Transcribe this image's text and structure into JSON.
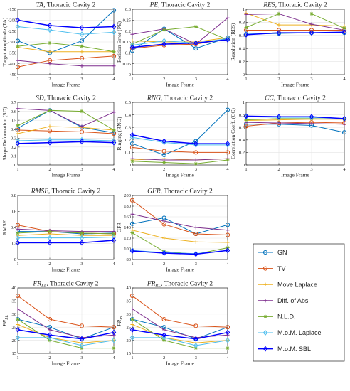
{
  "legend": {
    "entries": [
      {
        "name": "GN",
        "color": "#0072BD",
        "marker": "circle"
      },
      {
        "name": "TV",
        "color": "#D95319",
        "marker": "circle"
      },
      {
        "name": "Move Laplace",
        "color": "#EDB120",
        "marker": "plus"
      },
      {
        "name": "Diff. of Abs",
        "color": "#7E2F8E",
        "marker": "plus"
      },
      {
        "name": "N.L.D.",
        "color": "#77AC30",
        "marker": "star"
      },
      {
        "name": "M.o.M. Laplace",
        "color": "#4DBEEE",
        "marker": "diamond"
      },
      {
        "name": "M.o.M. SBL",
        "color": "#0000FF",
        "marker": "diamond"
      }
    ]
  },
  "chart_data": [
    {
      "id": "ta",
      "type": "line",
      "title": "TA, Thoracic Cavity 2",
      "title_italic_prefix": "TA",
      "title_rest": ", Thoracic Cavity 2",
      "ylabel": "Target Amplitude (TA)",
      "xlabel": "Image Frame",
      "x": [
        1,
        2,
        3,
        4
      ],
      "xlim": [
        1,
        4
      ],
      "ylim": [
        -450,
        -150
      ],
      "yticks": [
        -450,
        -400,
        -350,
        -300,
        -250,
        -200,
        -150
      ],
      "series": [
        {
          "name": "GN",
          "values": [
            -295,
            -350,
            -295,
            -155
          ]
        },
        {
          "name": "TV",
          "values": [
            -415,
            -385,
            -375,
            -365
          ]
        },
        {
          "name": "Move Laplace",
          "values": [
            -325,
            -345,
            -345,
            -345
          ]
        },
        {
          "name": "Diff. of Abs",
          "values": [
            -385,
            -400,
            -410,
            -410
          ]
        },
        {
          "name": "N.L.D.",
          "values": [
            -320,
            -305,
            -320,
            -345
          ]
        },
        {
          "name": "M.o.M. Laplace",
          "values": [
            -230,
            -245,
            -265,
            -255
          ]
        },
        {
          "name": "M.o.M. SBL",
          "values": [
            -200,
            -225,
            -235,
            -230
          ]
        }
      ]
    },
    {
      "id": "pe",
      "type": "line",
      "title": "PE, Thoracic Cavity 2",
      "title_italic_prefix": "PE",
      "title_rest": ", Thoracic Cavity 2",
      "ylabel": "Position Error (PE)",
      "xlabel": "Image Frame",
      "x": [
        1,
        2,
        3,
        4
      ],
      "xlim": [
        1,
        4
      ],
      "ylim": [
        0,
        0.3
      ],
      "yticks": [
        0,
        0.05,
        0.1,
        0.15,
        0.2,
        0.25,
        0.3
      ],
      "series": [
        {
          "name": "GN",
          "values": [
            0.11,
            0.21,
            0.12,
            0.17
          ]
        },
        {
          "name": "TV",
          "values": [
            0.12,
            0.135,
            0.14,
            0.165
          ]
        },
        {
          "name": "Move Laplace",
          "values": [
            0.155,
            0.15,
            0.15,
            0.17
          ]
        },
        {
          "name": "Diff. of Abs",
          "values": [
            0.185,
            0.21,
            0.14,
            0.26
          ]
        },
        {
          "name": "N.L.D.",
          "values": [
            0.14,
            0.205,
            0.22,
            0.16
          ]
        },
        {
          "name": "M.o.M. Laplace",
          "values": [
            0.135,
            0.155,
            0.145,
            0.165
          ]
        },
        {
          "name": "M.o.M. SBL",
          "values": [
            0.125,
            0.14,
            0.145,
            0.16
          ]
        }
      ]
    },
    {
      "id": "res",
      "type": "line",
      "title": "RES, Thoracic Cavity 2",
      "title_italic_prefix": "RES",
      "title_rest": ", Thoracic Cavity 2",
      "ylabel": "Resolution (RES)",
      "xlabel": "Image Frame",
      "x": [
        1,
        2,
        3,
        4
      ],
      "xlim": [
        1,
        4
      ],
      "ylim": [
        0,
        1
      ],
      "yticks": [
        0,
        0.2,
        0.4,
        0.6,
        0.8,
        1
      ],
      "series": [
        {
          "name": "GN",
          "values": [
            0.62,
            0.63,
            0.64,
            0.64
          ]
        },
        {
          "name": "TV",
          "values": [
            0.68,
            0.68,
            0.68,
            0.68
          ]
        },
        {
          "name": "Move Laplace",
          "values": [
            0.94,
            0.76,
            0.76,
            0.74
          ]
        },
        {
          "name": "Diff. of Abs",
          "values": [
            0.92,
            0.93,
            0.77,
            0.68
          ]
        },
        {
          "name": "N.L.D.",
          "values": [
            0.72,
            0.93,
            0.93,
            0.71
          ]
        },
        {
          "name": "M.o.M. Laplace",
          "values": [
            0.62,
            0.64,
            0.64,
            0.65
          ]
        },
        {
          "name": "M.o.M. SBL",
          "values": [
            0.61,
            0.64,
            0.64,
            0.65
          ]
        }
      ]
    },
    {
      "id": "sd",
      "type": "line",
      "title": "SD, Thoracic Cavity 2",
      "title_italic_prefix": "SD",
      "title_rest": ", Thoracic Cavity 2",
      "ylabel": "Shape Deformation (SD)",
      "xlabel": "Image Frame",
      "x": [
        1,
        2,
        3,
        4
      ],
      "xlim": [
        1,
        4
      ],
      "ylim": [
        0,
        0.7
      ],
      "yticks": [
        0,
        0.1,
        0.2,
        0.3,
        0.4,
        0.5,
        0.6,
        0.7
      ],
      "series": [
        {
          "name": "GN",
          "values": [
            0.41,
            0.61,
            0.42,
            0.36
          ]
        },
        {
          "name": "TV",
          "values": [
            0.39,
            0.38,
            0.37,
            0.35
          ]
        },
        {
          "name": "Move Laplace",
          "values": [
            0.35,
            0.43,
            0.42,
            0.39
          ]
        },
        {
          "name": "Diff. of Abs",
          "values": [
            0.63,
            0.61,
            0.43,
            0.59
          ]
        },
        {
          "name": "N.L.D.",
          "values": [
            0.44,
            0.61,
            0.6,
            0.39
          ]
        },
        {
          "name": "M.o.M. Laplace",
          "values": [
            0.27,
            0.28,
            0.28,
            0.27
          ]
        },
        {
          "name": "M.o.M. SBL",
          "values": [
            0.24,
            0.25,
            0.26,
            0.25
          ]
        }
      ]
    },
    {
      "id": "rng",
      "type": "line",
      "title": "RNG, Thoracic Cavity 2",
      "title_italic_prefix": "RNG",
      "title_rest": ", Thoracic Cavity 2",
      "ylabel": "Ringing (RNG)",
      "xlabel": "Image Frame",
      "x": [
        1,
        2,
        3,
        4
      ],
      "xlim": [
        1,
        4
      ],
      "ylim": [
        0,
        0.5
      ],
      "yticks": [
        0,
        0.1,
        0.2,
        0.3,
        0.4,
        0.5
      ],
      "series": [
        {
          "name": "GN",
          "values": [
            0.17,
            0.08,
            0.19,
            0.44
          ]
        },
        {
          "name": "TV",
          "values": [
            0.14,
            0.11,
            0.1,
            0.1
          ]
        },
        {
          "name": "Move Laplace",
          "values": [
            0.04,
            0.05,
            0.04,
            0.05
          ]
        },
        {
          "name": "Diff. of Abs",
          "values": [
            0.05,
            0.04,
            0.04,
            0.05
          ]
        },
        {
          "name": "N.L.D.",
          "values": [
            0.03,
            0.02,
            0.01,
            0.04
          ]
        },
        {
          "name": "M.o.M. Laplace",
          "values": [
            0.22,
            0.18,
            0.16,
            0.16
          ]
        },
        {
          "name": "M.o.M. SBL",
          "values": [
            0.24,
            0.19,
            0.17,
            0.17
          ]
        }
      ]
    },
    {
      "id": "cc",
      "type": "line",
      "title": "CC, Thoracic Cavity 2",
      "title_italic_prefix": "CC",
      "title_rest": ", Thoracic Cavity 2",
      "ylabel": "Correlation Coeff. (CC)",
      "xlabel": "Image Frame",
      "x": [
        1,
        2,
        3,
        4
      ],
      "xlim": [
        1,
        4
      ],
      "ylim": [
        0,
        1
      ],
      "yticks": [
        0,
        0.2,
        0.4,
        0.6,
        0.8,
        1
      ],
      "series": [
        {
          "name": "GN",
          "values": [
            0.65,
            0.65,
            0.63,
            0.52
          ]
        },
        {
          "name": "TV",
          "values": [
            0.62,
            0.67,
            0.68,
            0.67
          ]
        },
        {
          "name": "Move Laplace",
          "values": [
            0.71,
            0.72,
            0.73,
            0.73
          ]
        },
        {
          "name": "Diff. of Abs",
          "values": [
            0.68,
            0.67,
            0.66,
            0.65
          ]
        },
        {
          "name": "N.L.D.",
          "values": [
            0.72,
            0.74,
            0.74,
            0.73
          ]
        },
        {
          "name": "M.o.M. Laplace",
          "values": [
            0.77,
            0.76,
            0.76,
            0.74
          ]
        },
        {
          "name": "M.o.M. SBL",
          "values": [
            0.78,
            0.77,
            0.77,
            0.74
          ]
        }
      ]
    },
    {
      "id": "rmse",
      "type": "line",
      "title": "RMSE, Thoracic Cavity 2",
      "title_italic_prefix": "RMSE",
      "title_rest": ", Thoracic Cavity 2",
      "ylabel": "RMSE",
      "xlabel": "Image Frame",
      "x": [
        1,
        2,
        3,
        4
      ],
      "xlim": [
        1,
        4
      ],
      "ylim": [
        0,
        0.8
      ],
      "yticks": [
        0,
        0.2,
        0.4,
        0.6,
        0.8
      ],
      "series": [
        {
          "name": "GN",
          "values": [
            0.35,
            0.35,
            0.32,
            0.33
          ]
        },
        {
          "name": "TV",
          "values": [
            0.43,
            0.35,
            0.33,
            0.32
          ]
        },
        {
          "name": "Move Laplace",
          "values": [
            0.3,
            0.32,
            0.3,
            0.3
          ]
        },
        {
          "name": "Diff. of Abs",
          "values": [
            0.38,
            0.36,
            0.35,
            0.35
          ]
        },
        {
          "name": "N.L.D.",
          "values": [
            0.33,
            0.35,
            0.33,
            0.32
          ]
        },
        {
          "name": "M.o.M. Laplace",
          "values": [
            0.27,
            0.27,
            0.27,
            0.28
          ]
        },
        {
          "name": "M.o.M. SBL",
          "values": [
            0.21,
            0.21,
            0.21,
            0.24
          ]
        }
      ]
    },
    {
      "id": "gfr",
      "type": "line",
      "title": "GFR, Thoracic Cavity 2",
      "title_italic_prefix": "GFR",
      "title_rest": ", Thoracic Cavity 2",
      "ylabel": "GFR",
      "xlabel": "Image Frame",
      "x": [
        1,
        2,
        3,
        4
      ],
      "xlim": [
        1,
        4
      ],
      "ylim": [
        80,
        200
      ],
      "yticks": [
        80,
        100,
        120,
        140,
        160,
        180,
        200
      ],
      "series": [
        {
          "name": "GN",
          "values": [
            147,
            158,
            128,
            145
          ]
        },
        {
          "name": "TV",
          "values": [
            191,
            146,
            128,
            126
          ]
        },
        {
          "name": "Move Laplace",
          "values": [
            135,
            120,
            113,
            112
          ]
        },
        {
          "name": "Diff. of Abs",
          "values": [
            165,
            152,
            140,
            135
          ]
        },
        {
          "name": "N.L.D.",
          "values": [
            130,
            95,
            90,
            102
          ]
        },
        {
          "name": "M.o.M. Laplace",
          "values": [
            97,
            93,
            91,
            97
          ]
        },
        {
          "name": "M.o.M. SBL",
          "values": [
            96,
            92,
            90,
            97
          ]
        }
      ]
    },
    {
      "id": "frll",
      "type": "line",
      "title": "FR_LL, Thoracic Cavity 2",
      "title_italic_prefix": "FR",
      "title_sub": "LL",
      "title_rest": ", Thoracic Cavity 2",
      "ylabel": "FR_LL",
      "ylabel_main": "FR",
      "ylabel_sub": "LL",
      "xlabel": "Image Frame",
      "x": [
        1,
        2,
        3,
        4
      ],
      "xlim": [
        1,
        4
      ],
      "ylim": [
        15,
        40
      ],
      "yticks": [
        15,
        20,
        25,
        30,
        35,
        40
      ],
      "series": [
        {
          "name": "GN",
          "values": [
            28,
            25,
            20.5,
            25
          ]
        },
        {
          "name": "TV",
          "values": [
            37,
            28,
            25.5,
            25
          ]
        },
        {
          "name": "Move Laplace",
          "values": [
            26,
            21,
            19,
            20
          ]
        },
        {
          "name": "Diff. of Abs",
          "values": [
            32,
            24,
            21,
            22
          ]
        },
        {
          "name": "N.L.D.",
          "values": [
            28,
            20,
            17,
            17
          ]
        },
        {
          "name": "M.o.M. Laplace",
          "values": [
            21,
            21,
            18,
            20
          ]
        },
        {
          "name": "M.o.M. SBL",
          "values": [
            24,
            22,
            20.5,
            23
          ]
        }
      ]
    },
    {
      "id": "frrl",
      "type": "line",
      "title": "FR_RL, Thoracic Cavity 2",
      "title_italic_prefix": "FR",
      "title_sub": "RL",
      "title_rest": ", Thoracic Cavity 2",
      "ylabel": "FR_RL",
      "ylabel_main": "FR",
      "ylabel_sub": "RL",
      "xlabel": "Image Frame",
      "x": [
        1,
        2,
        3,
        4
      ],
      "xlim": [
        1,
        4
      ],
      "ylim": [
        15,
        40
      ],
      "yticks": [
        15,
        20,
        25,
        30,
        35,
        40
      ],
      "series": [
        {
          "name": "GN",
          "values": [
            28,
            25,
            20.5,
            25
          ]
        },
        {
          "name": "TV",
          "values": [
            37,
            28,
            25.5,
            25
          ]
        },
        {
          "name": "Move Laplace",
          "values": [
            26,
            21,
            19,
            20
          ]
        },
        {
          "name": "Diff. of Abs",
          "values": [
            32,
            24,
            21,
            22
          ]
        },
        {
          "name": "N.L.D.",
          "values": [
            28,
            20,
            17,
            17
          ]
        },
        {
          "name": "M.o.M. Laplace",
          "values": [
            21,
            21,
            18,
            20
          ]
        },
        {
          "name": "M.o.M. SBL",
          "values": [
            24,
            22,
            20.5,
            23
          ]
        }
      ]
    }
  ]
}
